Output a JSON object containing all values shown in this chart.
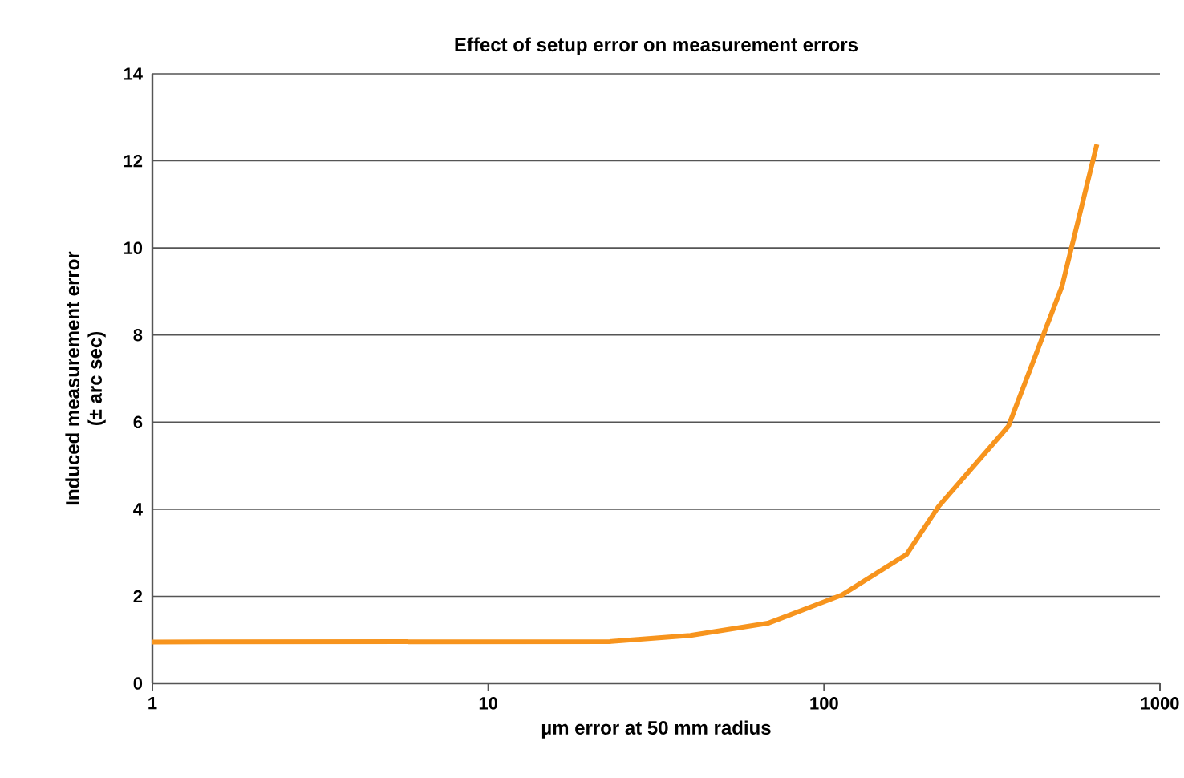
{
  "chart_data": {
    "type": "line",
    "title": "Effect of setup error on measurement errors",
    "xlabel": "µm error at 50 mm radius",
    "ylabel": "Induced measurement error\n(± arc sec)",
    "x": [
      1,
      23,
      40,
      68,
      113,
      176,
      219,
      354,
      511,
      649
    ],
    "series": [
      {
        "color": "#f7941d",
        "values": [
          0.95,
          0.96,
          1.1,
          1.38,
          2.03,
          2.96,
          4.06,
          5.91,
          9.12,
          12.38
        ]
      }
    ],
    "log": "x",
    "xlim": [
      1,
      1000
    ],
    "xticks": [
      1,
      10,
      100,
      1000
    ],
    "ylim": [
      0,
      14
    ],
    "yticks": [
      0,
      2,
      4,
      6,
      8,
      10,
      12,
      14
    ],
    "grid": "y",
    "marker": "none",
    "line_style": "solid"
  }
}
